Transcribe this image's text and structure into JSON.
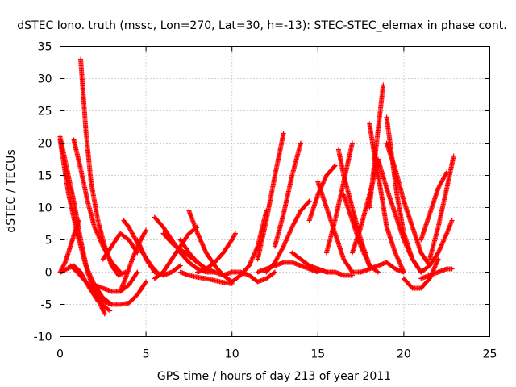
{
  "chart_data": {
    "type": "scatter",
    "title": "dSTEC Iono. truth (mssc, Lon=270, Lat=30, h=-13): STEC-STEC_elemax in phase cont.",
    "xlabel": "GPS time / hours of day 213 of year 2011",
    "ylabel": "dSTEC  / TECUs",
    "xlim": [
      0,
      25
    ],
    "ylim": [
      -10,
      35
    ],
    "xticks": [
      0,
      5,
      10,
      15,
      20,
      25
    ],
    "yticks": [
      -10,
      -5,
      0,
      5,
      10,
      15,
      20,
      25,
      30,
      35
    ],
    "xtick_labels": [
      "0",
      "5",
      "10",
      "15",
      "20",
      "25"
    ],
    "ytick_labels": [
      "-10",
      "-5",
      "0",
      "5",
      "10",
      "15",
      "20",
      "25",
      "30",
      "35"
    ],
    "grid": true,
    "marker": "plus",
    "color": "#ff0000",
    "series": [
      {
        "x": [
          0.0,
          0.5,
          1.0,
          1.5,
          2.0,
          2.5,
          3.0
        ],
        "y": [
          20.5,
          12,
          6,
          1,
          -2,
          -4,
          -5
        ]
      },
      {
        "x": [
          0.0,
          0.4,
          0.8,
          1.2,
          1.6,
          2.0,
          2.6
        ],
        "y": [
          21,
          16,
          11,
          5,
          0,
          -3,
          -6.5
        ]
      },
      {
        "x": [
          0.05,
          0.4,
          0.8,
          1.2,
          1.6,
          2.2,
          2.9
        ],
        "y": [
          0,
          0.5,
          1,
          0,
          -2,
          -4.5,
          -6
        ]
      },
      {
        "x": [
          0.0,
          0.3,
          0.6,
          0.9,
          1.1
        ],
        "y": [
          0,
          1.5,
          4,
          6.5,
          8
        ]
      },
      {
        "x": [
          0.6,
          1.0,
          1.5,
          2.0,
          2.5,
          3.0,
          3.5,
          4.0,
          4.5,
          5.0
        ],
        "y": [
          1,
          0,
          -1.5,
          -3,
          -4.5,
          -5,
          -5,
          -4.8,
          -3.5,
          -1.5
        ]
      },
      {
        "x": [
          1.2,
          1.5,
          1.8,
          2.2,
          2.6,
          3.0,
          3.4,
          3.8
        ],
        "y": [
          33,
          22,
          14,
          8,
          4,
          1,
          -0.5,
          0
        ]
      },
      {
        "x": [
          0.8,
          1.2,
          1.6,
          2.0,
          2.5,
          3.0,
          3.5
        ],
        "y": [
          20.5,
          16,
          11,
          7,
          4,
          1.5,
          0
        ]
      },
      {
        "x": [
          2.0,
          2.5,
          3.0,
          3.5,
          4.0,
          4.5
        ],
        "y": [
          -2,
          -2.5,
          -3,
          -3,
          -2,
          0
        ]
      },
      {
        "x": [
          3.5,
          3.8,
          4.2,
          4.6,
          5.0
        ],
        "y": [
          -3,
          -1,
          2,
          4.5,
          6.5
        ]
      },
      {
        "x": [
          3.7,
          4.0,
          4.4,
          4.8,
          5.3,
          5.8
        ],
        "y": [
          8,
          7,
          5,
          3,
          1,
          -0.5
        ]
      },
      {
        "x": [
          4.5,
          5.0,
          5.5,
          6.0,
          6.5,
          7.0
        ],
        "y": [
          5,
          2,
          0,
          -0.5,
          0,
          1
        ]
      },
      {
        "x": [
          2.5,
          3.0,
          3.5,
          4.0,
          4.5
        ],
        "y": [
          2,
          4,
          6,
          5,
          3
        ]
      },
      {
        "x": [
          5.5,
          6.0,
          6.5,
          7.0,
          7.5,
          8.0
        ],
        "y": [
          -1,
          0,
          2,
          4,
          6,
          7
        ]
      },
      {
        "x": [
          6.0,
          6.5,
          7.0,
          7.5,
          8.0,
          8.5
        ],
        "y": [
          6,
          4.5,
          3.5,
          2.5,
          1.5,
          0.5
        ]
      },
      {
        "x": [
          5.5,
          6.0,
          6.5,
          7.0,
          7.5,
          8.0,
          8.5,
          9.0
        ],
        "y": [
          8.5,
          7,
          5,
          3,
          1.5,
          0.5,
          0,
          0
        ]
      },
      {
        "x": [
          7.0,
          7.5,
          8.0,
          8.5,
          9.0,
          9.5,
          10.0
        ],
        "y": [
          5,
          3,
          1.5,
          0.5,
          0,
          -0.5,
          0
        ]
      },
      {
        "x": [
          7.5,
          8.0,
          8.5,
          9.0,
          9.5,
          10.0
        ],
        "y": [
          9.5,
          6,
          3,
          1,
          -0.5,
          -1.5
        ]
      },
      {
        "x": [
          7.0,
          7.5,
          8.0,
          8.5,
          9.0,
          9.5,
          10.0
        ],
        "y": [
          0,
          -0.5,
          -0.8,
          -1,
          -1.3,
          -1.6,
          -1.8
        ]
      },
      {
        "x": [
          8.0,
          8.5,
          9.0,
          9.5,
          10.0,
          10.2
        ],
        "y": [
          0,
          0.5,
          1.5,
          3,
          5,
          6
        ]
      },
      {
        "x": [
          10.0,
          10.5,
          11.0,
          11.5,
          12.0
        ],
        "y": [
          -1.5,
          -0.5,
          1,
          4,
          9.5
        ]
      },
      {
        "x": [
          10.0,
          10.5,
          11.0,
          11.5,
          12.0,
          12.5
        ],
        "y": [
          0,
          0,
          -0.5,
          -1.5,
          -1,
          0
        ]
      },
      {
        "x": [
          11.5,
          12.0,
          12.5,
          13.0
        ],
        "y": [
          2,
          8,
          15,
          21.5
        ]
      },
      {
        "x": [
          12.5,
          13.0,
          13.5,
          14.0
        ],
        "y": [
          4,
          9,
          15,
          20
        ]
      },
      {
        "x": [
          12.0,
          12.5,
          13.0,
          13.5,
          14.0,
          14.5
        ],
        "y": [
          0,
          1.5,
          4,
          7,
          9.5,
          11
        ]
      },
      {
        "x": [
          11.5,
          12.0,
          12.5,
          13.0,
          13.5,
          14.0,
          14.5,
          15.0
        ],
        "y": [
          0,
          0.5,
          1,
          1.5,
          1.5,
          1,
          0.5,
          0
        ]
      },
      {
        "x": [
          13.5,
          14.0,
          14.5,
          15.0,
          15.5,
          16.0
        ],
        "y": [
          3,
          2,
          1,
          0.5,
          0,
          0
        ]
      },
      {
        "x": [
          14.5,
          15.0,
          15.5,
          16.0
        ],
        "y": [
          8,
          12,
          15,
          16.5
        ]
      },
      {
        "x": [
          15.0,
          15.5,
          16.0,
          16.5,
          17.0
        ],
        "y": [
          14,
          10,
          6,
          2,
          0
        ]
      },
      {
        "x": [
          15.5,
          16.0,
          16.5,
          17.0
        ],
        "y": [
          3,
          8,
          14,
          20
        ]
      },
      {
        "x": [
          16.2,
          16.5,
          17.0,
          17.5,
          18.0
        ],
        "y": [
          19,
          15,
          10,
          5,
          1
        ]
      },
      {
        "x": [
          16.5,
          17.0,
          17.5,
          18.0,
          18.5
        ],
        "y": [
          12,
          8,
          4,
          1,
          0
        ]
      },
      {
        "x": [
          17.0,
          17.5,
          18.0,
          18.5
        ],
        "y": [
          3,
          7,
          12,
          17
        ]
      },
      {
        "x": [
          18.0,
          18.5,
          18.8
        ],
        "y": [
          10,
          22,
          29
        ]
      },
      {
        "x": [
          18.0,
          18.3,
          18.7,
          19.0,
          19.5,
          20.0
        ],
        "y": [
          23,
          18,
          12,
          7,
          3,
          0
        ]
      },
      {
        "x": [
          19.0,
          19.3,
          19.6,
          20.0,
          20.5,
          21.0
        ],
        "y": [
          24,
          18,
          12,
          6,
          2,
          0
        ]
      },
      {
        "x": [
          18.5,
          19.0,
          19.5,
          20.0,
          20.5,
          21.0
        ],
        "y": [
          17.5,
          13,
          9,
          5,
          2,
          0
        ]
      },
      {
        "x": [
          19.0,
          19.5,
          20.0,
          20.5,
          21.0,
          21.5
        ],
        "y": [
          20,
          16,
          11,
          7,
          3,
          1
        ]
      },
      {
        "x": [
          20.0,
          20.5,
          21.0,
          21.5,
          22.0
        ],
        "y": [
          -1,
          -2.5,
          -2.5,
          -1,
          2
        ]
      },
      {
        "x": [
          21.0,
          21.5,
          22.0,
          22.5
        ],
        "y": [
          5,
          9,
          13,
          15.5
        ]
      },
      {
        "x": [
          21.5,
          22.0,
          22.5,
          22.9
        ],
        "y": [
          2,
          7,
          13,
          18
        ]
      },
      {
        "x": [
          21.0,
          21.5,
          22.0,
          22.5,
          22.8
        ],
        "y": [
          0,
          1,
          3,
          6,
          8
        ]
      },
      {
        "x": [
          21.0,
          21.5,
          22.0,
          22.5,
          22.8
        ],
        "y": [
          -1,
          -0.5,
          0,
          0.5,
          0.5
        ]
      },
      {
        "x": [
          17.0,
          17.5,
          18.0,
          18.5,
          19.0,
          19.5,
          20.0
        ],
        "y": [
          0,
          0,
          0.5,
          1,
          1.5,
          0.5,
          0
        ]
      },
      {
        "x": [
          15.0,
          15.5,
          16.0,
          16.5,
          17.0
        ],
        "y": [
          0.5,
          0,
          0,
          -0.5,
          -0.5
        ]
      }
    ]
  }
}
